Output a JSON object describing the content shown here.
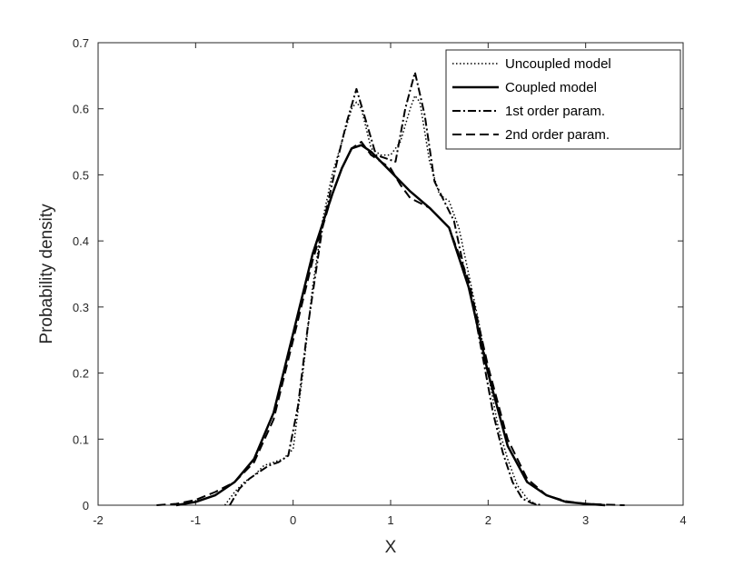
{
  "chart_data": {
    "type": "line",
    "xlabel": "X",
    "ylabel": "Probability density",
    "xlim": [
      -2,
      4
    ],
    "ylim": [
      0,
      0.7
    ],
    "xticks": [
      -2,
      -1,
      0,
      1,
      2,
      3,
      4
    ],
    "xtick_labels": [
      "-2",
      "-1",
      "0",
      "1",
      "2",
      "3",
      "4"
    ],
    "yticks": [
      0,
      0.1,
      0.2,
      0.3,
      0.4,
      0.5,
      0.6,
      0.7
    ],
    "ytick_labels": [
      "0",
      "0.1",
      "0.2",
      "0.3",
      "0.4",
      "0.5",
      "0.6",
      "0.7"
    ],
    "grid": false,
    "legend_position": "top-right",
    "series": [
      {
        "name": "Uncoupled model",
        "dash": "dotted",
        "width": 1.5,
        "x": [
          -0.7,
          -0.6,
          -0.5,
          -0.4,
          -0.3,
          -0.2,
          -0.1,
          0.0,
          0.1,
          0.2,
          0.3,
          0.4,
          0.5,
          0.6,
          0.65,
          0.7,
          0.8,
          0.9,
          1.0,
          1.1,
          1.2,
          1.25,
          1.3,
          1.4,
          1.5,
          1.6,
          1.7,
          1.8,
          1.9,
          2.0,
          2.1,
          2.2,
          2.3,
          2.4,
          2.5
        ],
        "values": [
          0.0,
          0.02,
          0.035,
          0.045,
          0.06,
          0.065,
          0.07,
          0.085,
          0.2,
          0.33,
          0.43,
          0.5,
          0.55,
          0.6,
          0.61,
          0.6,
          0.54,
          0.53,
          0.53,
          0.55,
          0.6,
          0.62,
          0.61,
          0.52,
          0.47,
          0.46,
          0.42,
          0.35,
          0.28,
          0.2,
          0.12,
          0.07,
          0.03,
          0.01,
          0.0
        ]
      },
      {
        "name": "Coupled model",
        "dash": "solid",
        "width": 2.5,
        "x": [
          -1.2,
          -1.0,
          -0.8,
          -0.6,
          -0.4,
          -0.2,
          0.0,
          0.2,
          0.4,
          0.5,
          0.6,
          0.7,
          0.8,
          1.0,
          1.2,
          1.4,
          1.6,
          1.8,
          2.0,
          2.2,
          2.4,
          2.6,
          2.8,
          3.0,
          3.2
        ],
        "values": [
          0.0,
          0.005,
          0.015,
          0.035,
          0.07,
          0.14,
          0.26,
          0.38,
          0.47,
          0.51,
          0.54,
          0.545,
          0.535,
          0.505,
          0.475,
          0.45,
          0.42,
          0.33,
          0.2,
          0.09,
          0.035,
          0.015,
          0.005,
          0.002,
          0.0
        ]
      },
      {
        "name": "1st order param.",
        "dash": "dashdot",
        "width": 2.0,
        "x": [
          -0.65,
          -0.55,
          -0.45,
          -0.35,
          -0.25,
          -0.15,
          -0.05,
          0.05,
          0.15,
          0.3,
          0.45,
          0.55,
          0.65,
          0.75,
          0.85,
          0.95,
          1.05,
          1.15,
          1.25,
          1.35,
          1.45,
          1.55,
          1.65,
          1.75,
          1.85,
          1.95,
          2.05,
          2.15,
          2.25,
          2.35,
          2.45,
          2.55
        ],
        "values": [
          0.0,
          0.025,
          0.04,
          0.05,
          0.06,
          0.065,
          0.075,
          0.15,
          0.27,
          0.42,
          0.52,
          0.58,
          0.63,
          0.58,
          0.53,
          0.525,
          0.52,
          0.6,
          0.655,
          0.59,
          0.49,
          0.46,
          0.43,
          0.36,
          0.3,
          0.22,
          0.14,
          0.08,
          0.035,
          0.01,
          0.003,
          0.0
        ]
      },
      {
        "name": "2nd order param.",
        "dash": "dashed",
        "width": 2.0,
        "x": [
          -1.4,
          -1.2,
          -1.0,
          -0.8,
          -0.6,
          -0.4,
          -0.2,
          0.0,
          0.2,
          0.4,
          0.5,
          0.6,
          0.7,
          0.8,
          1.0,
          1.1,
          1.2,
          1.4,
          1.6,
          1.8,
          2.0,
          2.2,
          2.4,
          2.6,
          2.8,
          3.0,
          3.2,
          3.4
        ],
        "values": [
          0.0,
          0.002,
          0.008,
          0.02,
          0.035,
          0.065,
          0.13,
          0.25,
          0.37,
          0.47,
          0.51,
          0.54,
          0.55,
          0.53,
          0.51,
          0.485,
          0.465,
          0.45,
          0.42,
          0.34,
          0.21,
          0.1,
          0.04,
          0.015,
          0.006,
          0.002,
          0.001,
          0.0
        ]
      }
    ]
  }
}
